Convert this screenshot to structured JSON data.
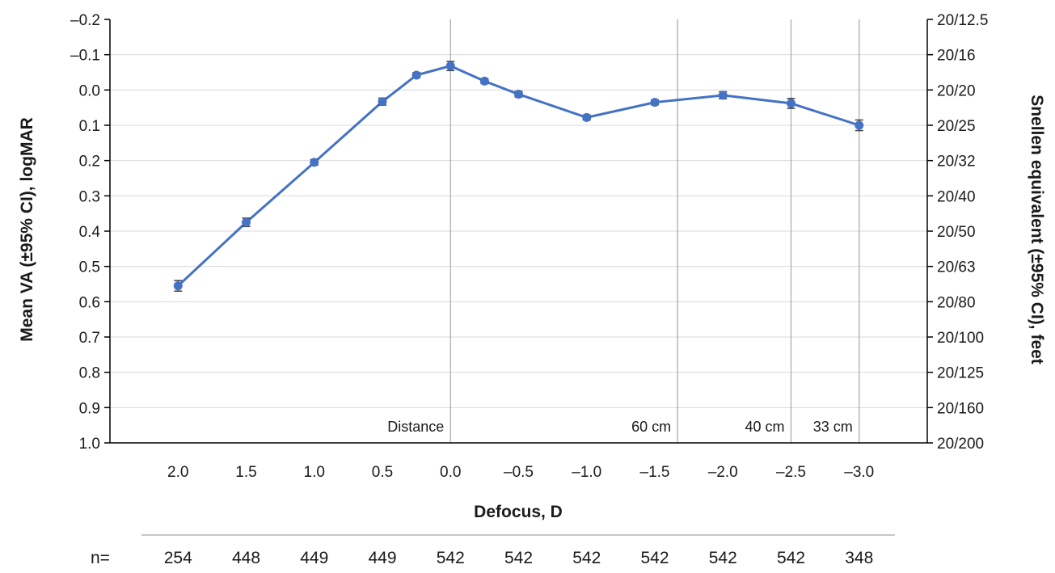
{
  "chart_data": {
    "type": "line",
    "xlabel": "Defocus, D",
    "ylabel": "Mean VA (±95% CI), logMAR",
    "y2label": "Snellen equivalent (±95% CI), feet",
    "x_tick_labels": [
      "2.0",
      "1.5",
      "1.0",
      "0.5",
      "0.0",
      "–0.5",
      "–1.0",
      "–1.5",
      "–2.0",
      "–2.5",
      "–3.0"
    ],
    "x_ticks": [
      2.0,
      1.5,
      1.0,
      0.5,
      0.0,
      -0.5,
      -1.0,
      -1.5,
      -2.0,
      -2.5,
      -3.0
    ],
    "xlim": [
      2.5,
      -3.5
    ],
    "ylim": [
      1.0,
      -0.2
    ],
    "y_inverted": true,
    "y_tick_labels": [
      "–0.2",
      "–0.1",
      "0.0",
      "0.1",
      "0.2",
      "0.3",
      "0.4",
      "0.5",
      "0.6",
      "0.7",
      "0.8",
      "0.9",
      "1.0"
    ],
    "y_ticks": [
      -0.2,
      -0.1,
      0.0,
      0.1,
      0.2,
      0.3,
      0.4,
      0.5,
      0.6,
      0.7,
      0.8,
      0.9,
      1.0
    ],
    "y2_tick_labels": [
      "20/12.5",
      "20/16",
      "20/20",
      "20/25",
      "20/32",
      "20/40",
      "20/50",
      "20/63",
      "20/80",
      "20/100",
      "20/125",
      "20/160",
      "20/200"
    ],
    "grid": true,
    "series": [
      {
        "color": "#4472c4",
        "x": [
          2.0,
          1.5,
          1.0,
          0.5,
          0.25,
          0.0,
          -0.25,
          -0.5,
          -1.0,
          -1.5,
          -2.0,
          -2.5,
          -3.0
        ],
        "y": [
          0.555,
          0.375,
          0.205,
          0.033,
          -0.042,
          -0.068,
          -0.025,
          0.012,
          0.078,
          0.035,
          0.015,
          0.038,
          0.1
        ],
        "ci": [
          0.015,
          0.012,
          0.008,
          0.01,
          0.007,
          0.013,
          0.007,
          0.008,
          0.007,
          0.007,
          0.01,
          0.014,
          0.015
        ]
      }
    ],
    "reference_lines": [
      {
        "x": 0.0,
        "label": "Distance"
      },
      {
        "x": -1.667,
        "label": "60 cm"
      },
      {
        "x": -2.5,
        "label": "40 cm"
      },
      {
        "x": -3.0,
        "label": "33 cm"
      }
    ],
    "n_label": "n=",
    "n_values": [
      "254",
      "448",
      "449",
      "449",
      "542",
      "542",
      "542",
      "542",
      "542",
      "542",
      "348"
    ]
  }
}
